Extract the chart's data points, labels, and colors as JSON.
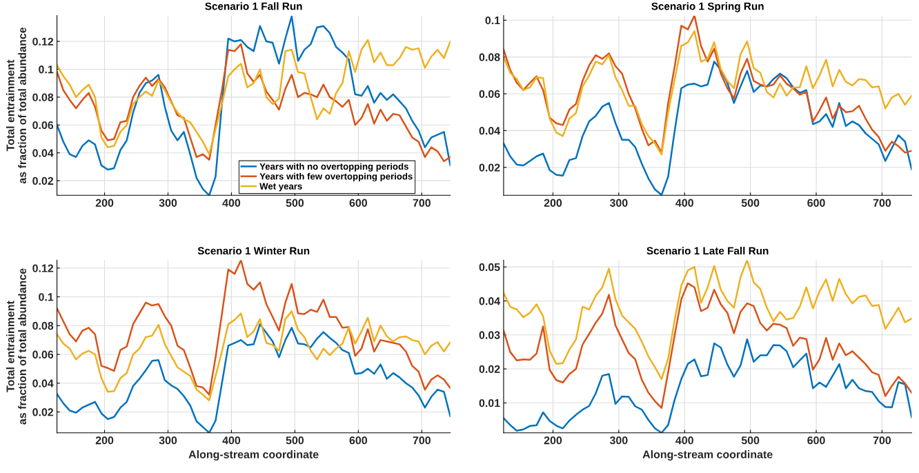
{
  "chart_data": [
    {
      "type": "line",
      "title": "Scenario 1 Fall Run",
      "ylabel": "Total entrainment\nas fraction of total abundance",
      "legend": "bottom right",
      "grid": true,
      "x": [
        125,
        135,
        145,
        155,
        165,
        175,
        185,
        195,
        205,
        215,
        225,
        235,
        245,
        255,
        265,
        275,
        285,
        295,
        305,
        315,
        325,
        335,
        345,
        355,
        365,
        375,
        385,
        395,
        405,
        415,
        425,
        435,
        445,
        455,
        465,
        475,
        485,
        495,
        505,
        515,
        525,
        535,
        545,
        555,
        565,
        575,
        585,
        595,
        605,
        615,
        625,
        635,
        645,
        655,
        665,
        675,
        685,
        695,
        705,
        715,
        725,
        735,
        745
      ],
      "xlim": [
        125,
        745
      ],
      "xticks": [
        200,
        300,
        400,
        500,
        600,
        700
      ],
      "ylim": [
        0.0095,
        0.1385
      ],
      "yticks": [
        0.02,
        0.04,
        0.06,
        0.08,
        0.1,
        0.12
      ],
      "series": [
        {
          "name": "Years with no overtopping periods",
          "color": "#0072bd",
          "values": [
            0.06,
            0.048,
            0.039,
            0.037,
            0.045,
            0.049,
            0.046,
            0.031,
            0.028,
            0.029,
            0.042,
            0.049,
            0.069,
            0.083,
            0.09,
            0.092,
            0.096,
            0.073,
            0.056,
            0.049,
            0.055,
            0.039,
            0.022,
            0.014,
            0.0095,
            0.023,
            0.075,
            0.122,
            0.12,
            0.121,
            0.116,
            0.113,
            0.131,
            0.12,
            0.119,
            0.104,
            0.122,
            0.138,
            0.106,
            0.114,
            0.118,
            0.13,
            0.131,
            0.126,
            0.116,
            0.112,
            0.107,
            0.082,
            0.081,
            0.088,
            0.076,
            0.083,
            0.078,
            0.082,
            0.077,
            0.072,
            0.063,
            0.056,
            0.044,
            0.051,
            0.053,
            0.055,
            0.031
          ]
        },
        {
          "name": "Years with few overtopping periods",
          "color": "#d95319",
          "values": [
            0.098,
            0.085,
            0.078,
            0.072,
            0.078,
            0.083,
            0.073,
            0.056,
            0.049,
            0.05,
            0.062,
            0.063,
            0.08,
            0.088,
            0.094,
            0.088,
            0.093,
            0.087,
            0.077,
            0.067,
            0.065,
            0.051,
            0.037,
            0.039,
            0.035,
            0.06,
            0.085,
            0.114,
            0.113,
            0.118,
            0.097,
            0.091,
            0.096,
            0.084,
            0.078,
            0.071,
            0.086,
            0.096,
            0.08,
            0.083,
            0.082,
            0.08,
            0.089,
            0.08,
            0.077,
            0.073,
            0.078,
            0.06,
            0.065,
            0.075,
            0.061,
            0.071,
            0.063,
            0.068,
            0.067,
            0.059,
            0.051,
            0.048,
            0.037,
            0.044,
            0.041,
            0.034,
            0.037
          ]
        },
        {
          "name": "Wet years",
          "color": "#edb120",
          "values": [
            0.103,
            0.095,
            0.089,
            0.08,
            0.085,
            0.089,
            0.08,
            0.051,
            0.044,
            0.045,
            0.055,
            0.06,
            0.075,
            0.08,
            0.084,
            0.081,
            0.092,
            0.085,
            0.076,
            0.069,
            0.064,
            0.062,
            0.055,
            0.048,
            0.039,
            0.057,
            0.075,
            0.095,
            0.1,
            0.104,
            0.087,
            0.09,
            0.1,
            0.08,
            0.075,
            0.079,
            0.113,
            0.114,
            0.098,
            0.097,
            0.08,
            0.064,
            0.072,
            0.068,
            0.083,
            0.09,
            0.113,
            0.098,
            0.114,
            0.121,
            0.105,
            0.112,
            0.103,
            0.103,
            0.108,
            0.116,
            0.114,
            0.115,
            0.101,
            0.109,
            0.114,
            0.108,
            0.12
          ]
        }
      ]
    },
    {
      "type": "line",
      "title": "Scenario 1 Spring Run",
      "grid": true,
      "x": [
        125,
        135,
        145,
        155,
        165,
        175,
        185,
        195,
        205,
        215,
        225,
        235,
        245,
        255,
        265,
        275,
        285,
        295,
        305,
        315,
        325,
        335,
        345,
        355,
        365,
        375,
        385,
        395,
        405,
        415,
        425,
        435,
        445,
        455,
        465,
        475,
        485,
        495,
        505,
        515,
        525,
        535,
        545,
        555,
        565,
        575,
        585,
        595,
        605,
        615,
        625,
        635,
        645,
        655,
        665,
        675,
        685,
        695,
        705,
        715,
        725,
        735,
        745
      ],
      "xlim": [
        125,
        745
      ],
      "xticks": [
        200,
        300,
        400,
        500,
        600,
        700
      ],
      "ylim": [
        0.0048,
        0.1025
      ],
      "yticks": [
        0.02,
        0.04,
        0.06,
        0.08,
        0.1
      ],
      "series": [
        {
          "color": "#0072bd",
          "values": [
            0.033,
            0.026,
            0.0215,
            0.021,
            0.0235,
            0.026,
            0.0275,
            0.0185,
            0.016,
            0.0155,
            0.024,
            0.025,
            0.037,
            0.045,
            0.048,
            0.053,
            0.055,
            0.044,
            0.035,
            0.035,
            0.031,
            0.022,
            0.014,
            0.008,
            0.005,
            0.015,
            0.04,
            0.063,
            0.065,
            0.0655,
            0.064,
            0.065,
            0.0775,
            0.073,
            0.066,
            0.055,
            0.064,
            0.0725,
            0.061,
            0.0645,
            0.064,
            0.068,
            0.071,
            0.0685,
            0.0635,
            0.0605,
            0.062,
            0.0435,
            0.045,
            0.049,
            0.042,
            0.055,
            0.0425,
            0.045,
            0.043,
            0.0385,
            0.0355,
            0.0325,
            0.0235,
            0.0305,
            0.0375,
            0.034,
            0.019
          ]
        },
        {
          "color": "#d95319",
          "values": [
            0.084,
            0.073,
            0.066,
            0.062,
            0.066,
            0.0695,
            0.062,
            0.047,
            0.044,
            0.043,
            0.0515,
            0.0545,
            0.067,
            0.0755,
            0.081,
            0.079,
            0.082,
            0.075,
            0.071,
            0.06,
            0.052,
            0.041,
            0.032,
            0.0345,
            0.028,
            0.055,
            0.075,
            0.097,
            0.095,
            0.1025,
            0.086,
            0.0775,
            0.0845,
            0.071,
            0.063,
            0.0575,
            0.071,
            0.079,
            0.067,
            0.065,
            0.064,
            0.065,
            0.07,
            0.0655,
            0.063,
            0.0595,
            0.061,
            0.045,
            0.051,
            0.058,
            0.0465,
            0.0535,
            0.05,
            0.0505,
            0.0535,
            0.0465,
            0.0405,
            0.0365,
            0.029,
            0.034,
            0.0315,
            0.028,
            0.029
          ]
        },
        {
          "color": "#edb120",
          "values": [
            0.08,
            0.0715,
            0.068,
            0.062,
            0.0635,
            0.069,
            0.0685,
            0.0465,
            0.039,
            0.037,
            0.0465,
            0.0495,
            0.064,
            0.07,
            0.0775,
            0.076,
            0.081,
            0.069,
            0.062,
            0.0535,
            0.0535,
            0.0435,
            0.037,
            0.033,
            0.027,
            0.05,
            0.068,
            0.086,
            0.088,
            0.094,
            0.0775,
            0.079,
            0.088,
            0.0735,
            0.067,
            0.063,
            0.0815,
            0.0885,
            0.074,
            0.0715,
            0.061,
            0.058,
            0.0655,
            0.059,
            0.0635,
            0.0635,
            0.075,
            0.063,
            0.07,
            0.0785,
            0.064,
            0.073,
            0.0665,
            0.0645,
            0.068,
            0.0675,
            0.0635,
            0.064,
            0.052,
            0.058,
            0.06,
            0.054,
            0.059
          ]
        }
      ]
    },
    {
      "type": "line",
      "title": "Scenario 1 Winter Run",
      "xlabel": "Along-stream coordinate",
      "ylabel": "Total entrainment\nas fraction of total abundance",
      "grid": true,
      "x": [
        125,
        135,
        145,
        155,
        165,
        175,
        185,
        195,
        205,
        215,
        225,
        235,
        245,
        255,
        265,
        275,
        285,
        295,
        305,
        315,
        325,
        335,
        345,
        355,
        365,
        375,
        385,
        395,
        405,
        415,
        425,
        435,
        445,
        455,
        465,
        475,
        485,
        495,
        505,
        515,
        525,
        535,
        545,
        555,
        565,
        575,
        585,
        595,
        605,
        615,
        625,
        635,
        645,
        655,
        665,
        675,
        685,
        695,
        705,
        715,
        725,
        735,
        745
      ],
      "xlim": [
        125,
        745
      ],
      "xticks": [
        200,
        300,
        400,
        500,
        600,
        700
      ],
      "ylim": [
        0.0055,
        0.1255
      ],
      "yticks": [
        0.02,
        0.04,
        0.06,
        0.08,
        0.1,
        0.12
      ],
      "series": [
        {
          "color": "#0072bd",
          "values": [
            0.0325,
            0.026,
            0.021,
            0.0195,
            0.023,
            0.025,
            0.027,
            0.019,
            0.015,
            0.0165,
            0.023,
            0.027,
            0.038,
            0.043,
            0.049,
            0.0555,
            0.056,
            0.042,
            0.0385,
            0.036,
            0.031,
            0.0245,
            0.0135,
            0.0095,
            0.0055,
            0.014,
            0.04,
            0.066,
            0.068,
            0.07,
            0.0665,
            0.067,
            0.081,
            0.075,
            0.069,
            0.058,
            0.07,
            0.0785,
            0.0675,
            0.067,
            0.065,
            0.071,
            0.0755,
            0.0715,
            0.068,
            0.063,
            0.061,
            0.0465,
            0.047,
            0.05,
            0.0465,
            0.053,
            0.043,
            0.047,
            0.044,
            0.04,
            0.037,
            0.0315,
            0.023,
            0.0305,
            0.0355,
            0.034,
            0.017
          ]
        },
        {
          "color": "#d95319",
          "values": [
            0.092,
            0.083,
            0.074,
            0.069,
            0.0765,
            0.0785,
            0.074,
            0.052,
            0.0505,
            0.0485,
            0.063,
            0.0655,
            0.081,
            0.0885,
            0.096,
            0.094,
            0.095,
            0.0865,
            0.08,
            0.066,
            0.063,
            0.051,
            0.038,
            0.037,
            0.032,
            0.058,
            0.088,
            0.119,
            0.116,
            0.1255,
            0.109,
            0.105,
            0.11,
            0.095,
            0.086,
            0.0765,
            0.096,
            0.109,
            0.0885,
            0.088,
            0.091,
            0.0895,
            0.098,
            0.086,
            0.086,
            0.0785,
            0.079,
            0.059,
            0.064,
            0.0775,
            0.062,
            0.07,
            0.069,
            0.068,
            0.067,
            0.062,
            0.052,
            0.048,
            0.0355,
            0.0425,
            0.0455,
            0.0425,
            0.0365
          ]
        },
        {
          "color": "#edb120",
          "values": [
            0.074,
            0.0675,
            0.064,
            0.0565,
            0.0605,
            0.0625,
            0.06,
            0.0435,
            0.034,
            0.0345,
            0.0435,
            0.047,
            0.06,
            0.064,
            0.072,
            0.073,
            0.0805,
            0.067,
            0.059,
            0.051,
            0.048,
            0.045,
            0.0355,
            0.032,
            0.028,
            0.045,
            0.062,
            0.081,
            0.084,
            0.0885,
            0.072,
            0.076,
            0.0845,
            0.068,
            0.0665,
            0.0625,
            0.0845,
            0.09,
            0.077,
            0.072,
            0.0625,
            0.0565,
            0.064,
            0.0595,
            0.064,
            0.0675,
            0.079,
            0.0675,
            0.076,
            0.0855,
            0.069,
            0.08,
            0.0725,
            0.069,
            0.072,
            0.0725,
            0.07,
            0.069,
            0.06,
            0.066,
            0.0685,
            0.062,
            0.0685
          ]
        }
      ]
    },
    {
      "type": "line",
      "title": "Scenario 1 Late Fall Run",
      "xlabel": "Along-stream coordinate",
      "grid": true,
      "x": [
        125,
        135,
        145,
        155,
        165,
        175,
        185,
        195,
        205,
        215,
        225,
        235,
        245,
        255,
        265,
        275,
        285,
        295,
        305,
        315,
        325,
        335,
        345,
        355,
        365,
        375,
        385,
        395,
        405,
        415,
        425,
        435,
        445,
        455,
        465,
        475,
        485,
        495,
        505,
        515,
        525,
        535,
        545,
        555,
        565,
        575,
        585,
        595,
        605,
        615,
        625,
        635,
        645,
        655,
        665,
        675,
        685,
        695,
        705,
        715,
        725,
        735,
        745
      ],
      "xlim": [
        125,
        745
      ],
      "xticks": [
        200,
        300,
        400,
        500,
        600,
        700
      ],
      "ylim": [
        0.0012,
        0.052
      ],
      "yticks": [
        0.01,
        0.02,
        0.03,
        0.04,
        0.05
      ],
      "series": [
        {
          "color": "#0072bd",
          "values": [
            0.0055,
            0.0035,
            0.0018,
            0.0022,
            0.0032,
            0.0034,
            0.0072,
            0.0047,
            0.0033,
            0.0025,
            0.0048,
            0.0065,
            0.008,
            0.0091,
            0.0128,
            0.018,
            0.0185,
            0.0097,
            0.0119,
            0.0118,
            0.009,
            0.008,
            0.005,
            0.0025,
            0.0012,
            0.0035,
            0.011,
            0.017,
            0.0215,
            0.0228,
            0.0178,
            0.0182,
            0.0275,
            0.0263,
            0.0213,
            0.0177,
            0.021,
            0.0287,
            0.0221,
            0.024,
            0.024,
            0.027,
            0.0269,
            0.0252,
            0.0205,
            0.0225,
            0.0245,
            0.0143,
            0.016,
            0.0147,
            0.018,
            0.0214,
            0.0143,
            0.0168,
            0.0143,
            0.0135,
            0.0132,
            0.0105,
            0.0088,
            0.0087,
            0.0161,
            0.0155,
            0.0058
          ]
        },
        {
          "color": "#d95319",
          "values": [
            0.0312,
            0.025,
            0.0225,
            0.0228,
            0.0227,
            0.0245,
            0.0325,
            0.0197,
            0.0167,
            0.016,
            0.0185,
            0.02,
            0.0272,
            0.0303,
            0.0336,
            0.0363,
            0.0418,
            0.0328,
            0.0287,
            0.0247,
            0.0228,
            0.0168,
            0.013,
            0.0105,
            0.0085,
            0.019,
            0.03,
            0.0405,
            0.0452,
            0.044,
            0.037,
            0.038,
            0.0433,
            0.039,
            0.0365,
            0.0305,
            0.0368,
            0.0393,
            0.0385,
            0.0335,
            0.0313,
            0.0333,
            0.033,
            0.032,
            0.0268,
            0.0292,
            0.0288,
            0.0198,
            0.0228,
            0.0291,
            0.0227,
            0.0275,
            0.024,
            0.0252,
            0.0233,
            0.0214,
            0.019,
            0.0182,
            0.012,
            0.015,
            0.0177,
            0.0157,
            0.013
          ]
        },
        {
          "color": "#edb120",
          "values": [
            0.0423,
            0.0383,
            0.0375,
            0.0352,
            0.0365,
            0.039,
            0.0355,
            0.0253,
            0.0215,
            0.0217,
            0.0257,
            0.0287,
            0.0383,
            0.0375,
            0.0415,
            0.044,
            0.0495,
            0.0405,
            0.0357,
            0.0337,
            0.0318,
            0.028,
            0.0237,
            0.0205,
            0.017,
            0.023,
            0.0345,
            0.0445,
            0.049,
            0.05,
            0.0395,
            0.044,
            0.0503,
            0.0433,
            0.04,
            0.038,
            0.047,
            0.052,
            0.0455,
            0.0435,
            0.038,
            0.034,
            0.0368,
            0.0345,
            0.035,
            0.0383,
            0.044,
            0.0378,
            0.0428,
            0.0463,
            0.04,
            0.0465,
            0.042,
            0.0393,
            0.0412,
            0.0416,
            0.0385,
            0.0388,
            0.0318,
            0.0348,
            0.038,
            0.0337,
            0.0348
          ]
        }
      ]
    }
  ]
}
